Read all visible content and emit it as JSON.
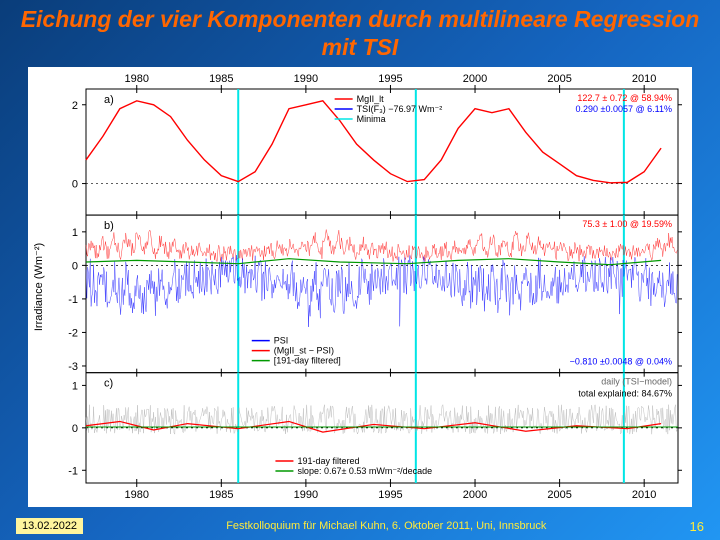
{
  "slide_bg_gradient": [
    "#0a3d7a",
    "#1565c0",
    "#2196f3"
  ],
  "title": "Eichung der vier Komponenten durch multilineare Regression mit TSI",
  "title_color": "#ff6600",
  "footer": {
    "date": "13.02.2022",
    "center": "Festkolloquium für Michael Kuhn, 6. Oktober 2011, Uni, Innsbruck",
    "page": "16"
  },
  "chart": {
    "background": "#ffffff",
    "ylabel": "Irradiance (Wm⁻²)",
    "x_axis": {
      "min": 1977,
      "max": 2012,
      "ticks": [
        1980,
        1985,
        1990,
        1995,
        2000,
        2005,
        2010
      ],
      "fontsize": 11
    },
    "minima_lines": {
      "color": "#00e5e5",
      "width": 2,
      "years": [
        1986.0,
        1996.5,
        2008.8
      ]
    },
    "panels": [
      {
        "id": "a",
        "ymin": -0.8,
        "ymax": 2.4,
        "yticks": [
          0,
          2
        ],
        "legend": [
          {
            "label": "MgII_lt",
            "color": "#ff0000"
          },
          {
            "label": "TSI(F₃) −76.97 Wm⁻²",
            "color": "#0000ff"
          },
          {
            "label": "Minima",
            "color": "#00e5e5"
          }
        ],
        "stats": [
          {
            "text": "122.7 ± 0.72 @ 58.94%",
            "color": "#ff0000"
          },
          {
            "text": "0.290 ±0.0057 @ 6.11%",
            "color": "#0000ff"
          }
        ],
        "series": [
          {
            "color": "#ff0000",
            "width": 1.4,
            "data": [
              [
                1977,
                0.6
              ],
              [
                1978,
                1.2
              ],
              [
                1979,
                1.9
              ],
              [
                1980,
                2.1
              ],
              [
                1981,
                2.0
              ],
              [
                1982,
                1.7
              ],
              [
                1983,
                1.1
              ],
              [
                1984,
                0.6
              ],
              [
                1985,
                0.2
              ],
              [
                1986,
                0.05
              ],
              [
                1987,
                0.3
              ],
              [
                1988,
                1.0
              ],
              [
                1989,
                1.9
              ],
              [
                1990,
                2.0
              ],
              [
                1991,
                2.1
              ],
              [
                1992,
                1.6
              ],
              [
                1993,
                1.0
              ],
              [
                1994,
                0.6
              ],
              [
                1995,
                0.25
              ],
              [
                1996,
                0.05
              ],
              [
                1997,
                0.1
              ],
              [
                1998,
                0.6
              ],
              [
                1999,
                1.4
              ],
              [
                2000,
                1.9
              ],
              [
                2001,
                1.8
              ],
              [
                2002,
                1.9
              ],
              [
                2003,
                1.3
              ],
              [
                2004,
                0.8
              ],
              [
                2005,
                0.5
              ],
              [
                2006,
                0.2
              ],
              [
                2007,
                0.08
              ],
              [
                2008,
                0.02
              ],
              [
                2009,
                0.03
              ],
              [
                2010,
                0.3
              ],
              [
                2011,
                0.9
              ]
            ]
          }
        ]
      },
      {
        "id": "b",
        "ymin": -3.2,
        "ymax": 1.5,
        "yticks": [
          -3,
          -2,
          -1,
          0,
          1
        ],
        "legend": [
          {
            "label": "PSI",
            "color": "#0000ff"
          },
          {
            "label": "(MgII_st − PSI)",
            "color": "#ff0000"
          },
          {
            "label": "[191-day filtered]",
            "color": "#009900"
          }
        ],
        "stats": [
          {
            "text": "75.3 ± 1.00 @ 19.59%",
            "color": "#ff0000"
          },
          {
            "text": "−0.810 ±0.0048 @ 0.04%",
            "color": "#0000ff"
          }
        ],
        "noise_series": [
          {
            "color": "#ff0000",
            "center": 0.35,
            "amp": 0.7,
            "jitter": 0.25,
            "cycle": true
          },
          {
            "color": "#0000ff",
            "center": -0.25,
            "amp": 1.1,
            "jitter": 0.6,
            "cycle": true,
            "spikes": true
          }
        ],
        "filtered": {
          "color": "#009900",
          "width": 1.2,
          "data": [
            [
              1977,
              0.1
            ],
            [
              1980,
              0.15
            ],
            [
              1983,
              0.1
            ],
            [
              1986,
              0.05
            ],
            [
              1989,
              0.2
            ],
            [
              1992,
              0.1
            ],
            [
              1996,
              0.05
            ],
            [
              1999,
              0.15
            ],
            [
              2002,
              0.2
            ],
            [
              2005,
              0.1
            ],
            [
              2008,
              0.02
            ],
            [
              2011,
              0.15
            ]
          ]
        }
      },
      {
        "id": "c",
        "ymin": -1.3,
        "ymax": 1.3,
        "yticks": [
          -1,
          0,
          1
        ],
        "legend": [
          {
            "label": "191-day filtered",
            "color": "#ff0000"
          },
          {
            "label": "slope: 0.67± 0.53 mWm⁻²/decade",
            "color": "#009900"
          }
        ],
        "stats": [
          {
            "text": "daily (TSI−model)",
            "color": "#666666"
          },
          {
            "text": "total explained: 84.67%",
            "color": "#000000"
          }
        ],
        "noise_series": [
          {
            "color": "#aaaaaa",
            "center": 0,
            "amp": 0.5,
            "jitter": 0.35
          }
        ],
        "filtered": {
          "color": "#ff0000",
          "width": 1.2,
          "data": [
            [
              1977,
              0.05
            ],
            [
              1979,
              0.15
            ],
            [
              1981,
              -0.05
            ],
            [
              1983,
              0.1
            ],
            [
              1986,
              -0.02
            ],
            [
              1989,
              0.15
            ],
            [
              1991,
              -0.1
            ],
            [
              1994,
              0.08
            ],
            [
              1997,
              -0.02
            ],
            [
              2000,
              0.12
            ],
            [
              2003,
              -0.08
            ],
            [
              2006,
              0.05
            ],
            [
              2009,
              -0.02
            ],
            [
              2011,
              0.1
            ]
          ]
        },
        "trend": {
          "color": "#009900",
          "width": 1,
          "y": 0.02
        }
      }
    ]
  }
}
